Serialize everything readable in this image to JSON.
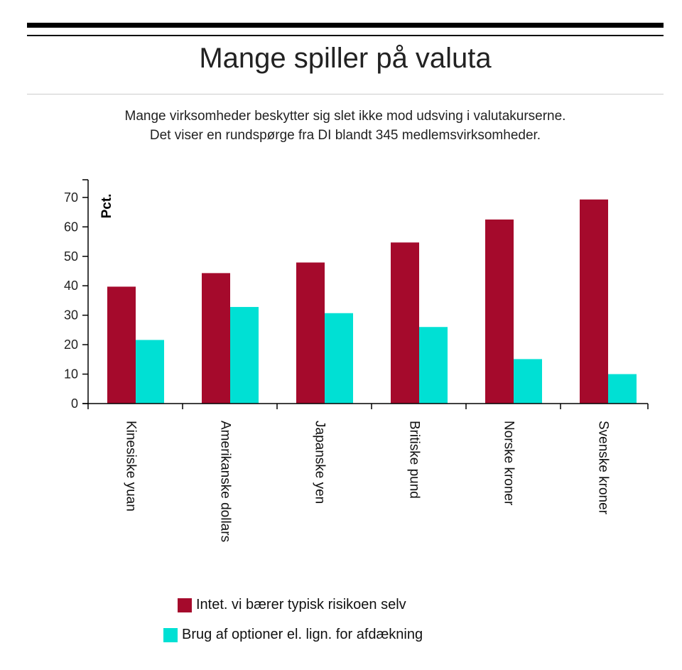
{
  "title": "Mange spiller på valuta",
  "subtitle_line1": "Mange virksomheder beskytter sig slet ikke mod udsving i valutakurserne.",
  "subtitle_line2": "Det viser en rundspørge fra DI blandt 345 medlemsvirksomheder.",
  "chart_data": {
    "type": "bar",
    "title": "Mange spiller på valuta",
    "xlabel": "",
    "ylabel": "Pct.",
    "ylim": [
      0,
      76
    ],
    "yticks": [
      0,
      10,
      20,
      30,
      40,
      50,
      60,
      70
    ],
    "categories": [
      "Kinesiske yuan",
      "Amerikanske dollars",
      "Japanske yen",
      "Britiske pund",
      "Norske kroner",
      "Svenske kroner"
    ],
    "series": [
      {
        "name": "Intet. vi bærer typisk risikoen selv",
        "color": "#a50a2c",
        "values": [
          39.7,
          44.3,
          47.9,
          54.7,
          62.5,
          69.3
        ]
      },
      {
        "name": "Brug af optioner el. lign. for afdækning",
        "color": "#00e0d4",
        "values": [
          21.6,
          32.8,
          30.7,
          26.0,
          15.1,
          10.0
        ]
      }
    ],
    "legend": "bottom",
    "grid": false
  }
}
